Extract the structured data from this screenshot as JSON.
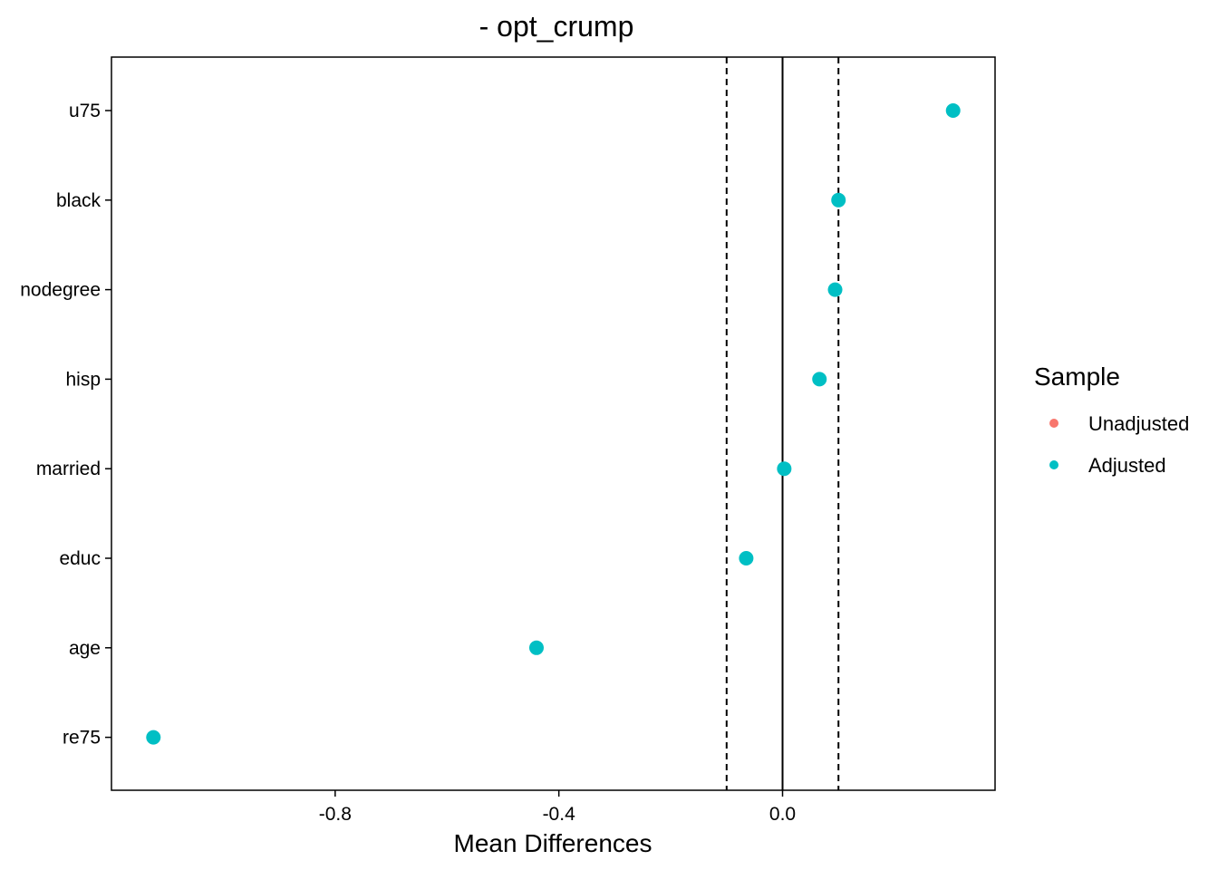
{
  "chart_data": {
    "type": "scatter",
    "title": "- opt_crump",
    "xlabel": "Mean Differences",
    "ylabel": "",
    "xlim": [
      -1.2,
      0.38
    ],
    "x_ticks": [
      -0.8,
      -0.4,
      0.0
    ],
    "x_tick_labels": [
      "-0.8",
      "-0.4",
      "0.0"
    ],
    "categories": [
      "u75",
      "black",
      "nodegree",
      "hisp",
      "married",
      "educ",
      "age",
      "re75"
    ],
    "series": [
      {
        "name": "Unadjusted",
        "color": "#F8766D",
        "values": []
      },
      {
        "name": "Adjusted",
        "color": "#00BFC4",
        "values": [
          0.305,
          0.1,
          0.094,
          0.066,
          0.003,
          -0.065,
          -0.44,
          -1.125
        ]
      }
    ],
    "reference_lines": {
      "solid": 0.0,
      "dashed": [
        -0.1,
        0.1
      ]
    },
    "legend": {
      "title": "Sample",
      "position": "right",
      "items": [
        "Unadjusted",
        "Adjusted"
      ]
    },
    "grid": false
  }
}
